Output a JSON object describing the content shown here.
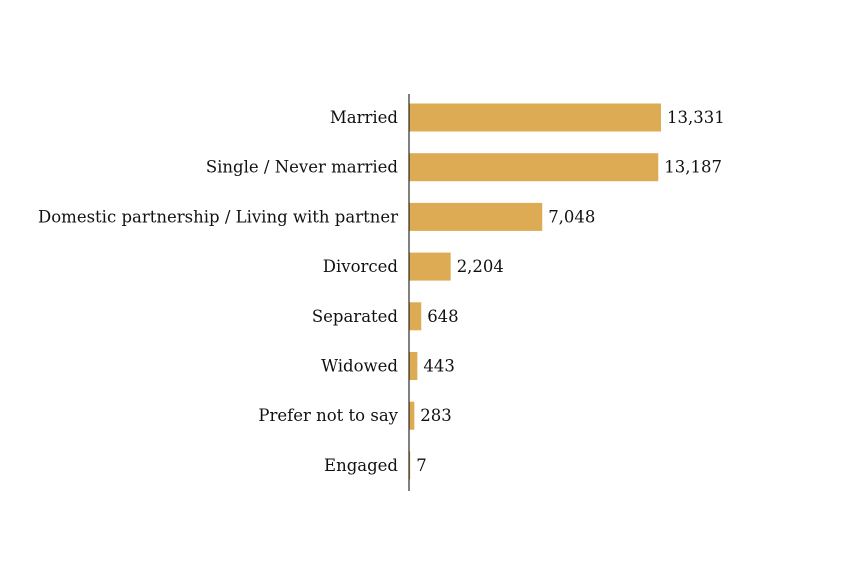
{
  "chart_data": {
    "type": "bar",
    "orientation": "horizontal",
    "title": "",
    "xlabel": "",
    "ylabel": "",
    "categories": [
      "Married",
      "Single / Never married",
      "Domestic partnership / Living with partner",
      "Divorced",
      "Separated",
      "Widowed",
      "Prefer not to say",
      "Engaged"
    ],
    "values": [
      13331,
      13187,
      7048,
      2204,
      648,
      443,
      283,
      7
    ],
    "value_labels": [
      "13,331",
      "13,187",
      "7,048",
      "2,204",
      "648",
      "443",
      "283",
      "7"
    ],
    "xlim": [
      0,
      13331
    ],
    "grid": false,
    "legend": "none",
    "bar_color": "#dcab54",
    "axis_color": "#000000",
    "text_color": "#111111"
  }
}
